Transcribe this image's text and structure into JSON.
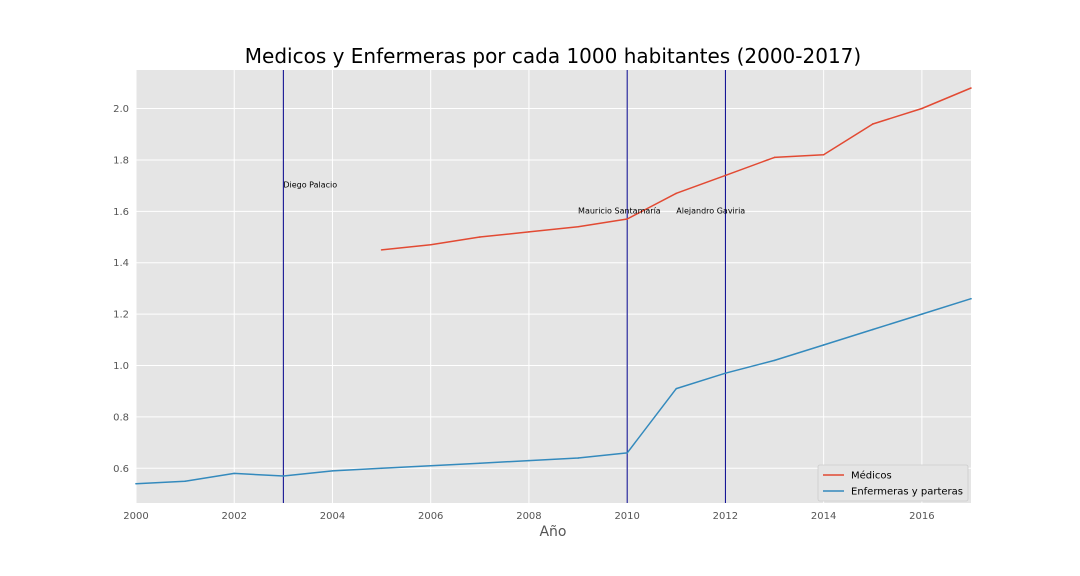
{
  "chart_data": {
    "type": "line",
    "title": "Medicos y Enfermeras por cada 1000 habitantes (2000-2017)",
    "xlabel": "Año",
    "ylabel": "",
    "xlim": [
      2000,
      2017
    ],
    "ylim": [
      0.465,
      2.15
    ],
    "xticks": [
      2000,
      2002,
      2004,
      2006,
      2008,
      2010,
      2012,
      2014,
      2016
    ],
    "yticks": [
      0.6,
      0.8,
      1.0,
      1.2,
      1.4,
      1.6,
      1.8,
      2.0
    ],
    "grid": true,
    "legend_position": "lower-right",
    "series": [
      {
        "name": "Médicos",
        "color": "#E24A33",
        "x": [
          2005,
          2006,
          2007,
          2008,
          2009,
          2010,
          2011,
          2012,
          2013,
          2014,
          2015,
          2016,
          2017
        ],
        "y": [
          1.45,
          1.47,
          1.5,
          1.52,
          1.54,
          1.57,
          1.67,
          1.74,
          1.81,
          1.82,
          1.94,
          2.0,
          2.08
        ]
      },
      {
        "name": "Enfermeras y parteras",
        "color": "#348ABD",
        "x": [
          2000,
          2001,
          2002,
          2003,
          2004,
          2005,
          2006,
          2007,
          2008,
          2009,
          2010,
          2011,
          2012,
          2013,
          2014,
          2015,
          2016,
          2017
        ],
        "y": [
          0.54,
          0.55,
          0.58,
          0.57,
          0.59,
          0.6,
          0.61,
          0.62,
          0.63,
          0.64,
          0.66,
          0.91,
          0.97,
          1.02,
          1.08,
          1.14,
          1.2,
          1.26
        ]
      }
    ],
    "vlines": [
      {
        "x": 2003,
        "color": "#00008B"
      },
      {
        "x": 2010,
        "color": "#00008B"
      },
      {
        "x": 2012,
        "color": "#00008B"
      }
    ],
    "annotations": [
      {
        "text": "Diego Palacio",
        "x": 2003,
        "y": 1.7
      },
      {
        "text": "Mauricio Santamaría",
        "x": 2009,
        "y": 1.6
      },
      {
        "text": "Alejandro Gaviria",
        "x": 2011,
        "y": 1.6
      }
    ]
  }
}
